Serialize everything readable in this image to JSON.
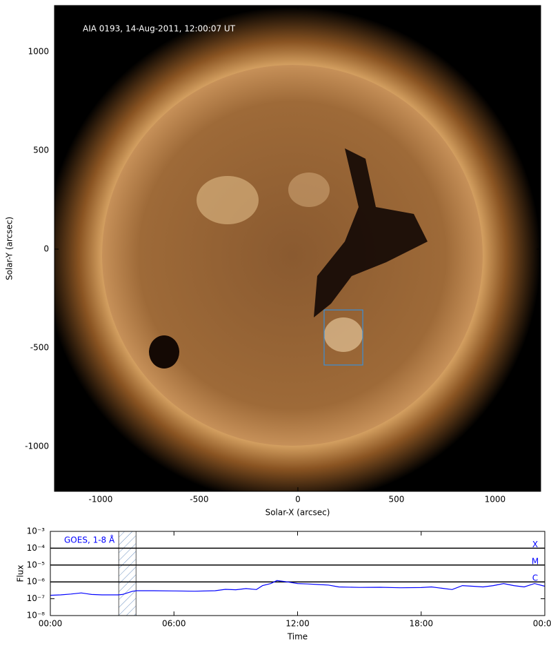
{
  "chart_data": [
    {
      "type": "image",
      "title": "AIA 0193, 14-Aug-2011, 12:00:07 UT",
      "xlabel": "Solar-X (arcsec)",
      "ylabel": "Solar-Y (arcsec)",
      "xlim": [
        -1234,
        1231
      ],
      "ylim": [
        -1227,
        1234
      ],
      "xticks": [
        -1000,
        -500,
        0,
        500,
        1000
      ],
      "yticks": [
        -1000,
        -500,
        0,
        500,
        1000
      ],
      "box": {
        "x": [
          133,
          329
        ],
        "y": [
          -587,
          -308
        ],
        "color": "#3a8fd8"
      }
    },
    {
      "type": "line",
      "xlabel": "Time",
      "ylabel": "Flux",
      "ylog": true,
      "xlim": [
        0,
        24
      ],
      "ylim": [
        1e-08,
        0.001
      ],
      "xticks": [
        {
          "value": 0,
          "label": "00:00"
        },
        {
          "value": 6,
          "label": "06:00"
        },
        {
          "value": 12,
          "label": "12:00"
        },
        {
          "value": 18,
          "label": "18:00"
        },
        {
          "value": 24,
          "label": "00:00"
        }
      ],
      "yticks": [
        {
          "value": 1e-08,
          "label": "10⁻⁸"
        },
        {
          "value": 1e-07,
          "label": "10⁻⁷"
        },
        {
          "value": 1e-06,
          "label": "10⁻⁶"
        },
        {
          "value": 1e-05,
          "label": "10⁻⁵"
        },
        {
          "value": 0.0001,
          "label": "10⁻⁴"
        },
        {
          "value": 0.001,
          "label": "10⁻³"
        }
      ],
      "hlines": [
        {
          "value": 0.0001,
          "label": "X"
        },
        {
          "value": 1e-05,
          "label": "M"
        },
        {
          "value": 1e-06,
          "label": "C"
        }
      ],
      "span": [
        3.32,
        4.16
      ],
      "x": [
        0,
        0.5,
        1,
        1.5,
        2,
        2.5,
        3,
        3.3,
        3.5,
        4,
        4.2,
        5,
        6,
        7,
        8,
        8.5,
        9,
        9.5,
        10,
        10.3,
        10.7,
        11,
        11.5,
        12,
        12.5,
        13,
        13.5,
        14,
        15,
        16,
        17,
        18,
        18.5,
        19,
        19.5,
        20,
        20.5,
        21,
        21.5,
        22,
        22.5,
        23,
        23.5,
        24
      ],
      "series": [
        {
          "name": "GOES, 1-8 Å",
          "color": "#0000ff",
          "values": [
            1.6e-07,
            1.7e-07,
            1.9e-07,
            2.2e-07,
            1.8e-07,
            1.7e-07,
            1.7e-07,
            1.7e-07,
            1.8e-07,
            2.8e-07,
            3e-07,
            3e-07,
            2.9e-07,
            2.8e-07,
            3e-07,
            3.6e-07,
            3.4e-07,
            4e-07,
            3.5e-07,
            6e-07,
            8e-07,
            1.2e-06,
            1e-06,
            8e-07,
            7.5e-07,
            7e-07,
            6.5e-07,
            5e-07,
            4.7e-07,
            4.8e-07,
            4.5e-07,
            4.6e-07,
            5e-07,
            4.2e-07,
            3.5e-07,
            6e-07,
            5.5e-07,
            5e-07,
            6e-07,
            8e-07,
            6e-07,
            5e-07,
            8e-07,
            5.5e-07
          ]
        }
      ]
    }
  ]
}
